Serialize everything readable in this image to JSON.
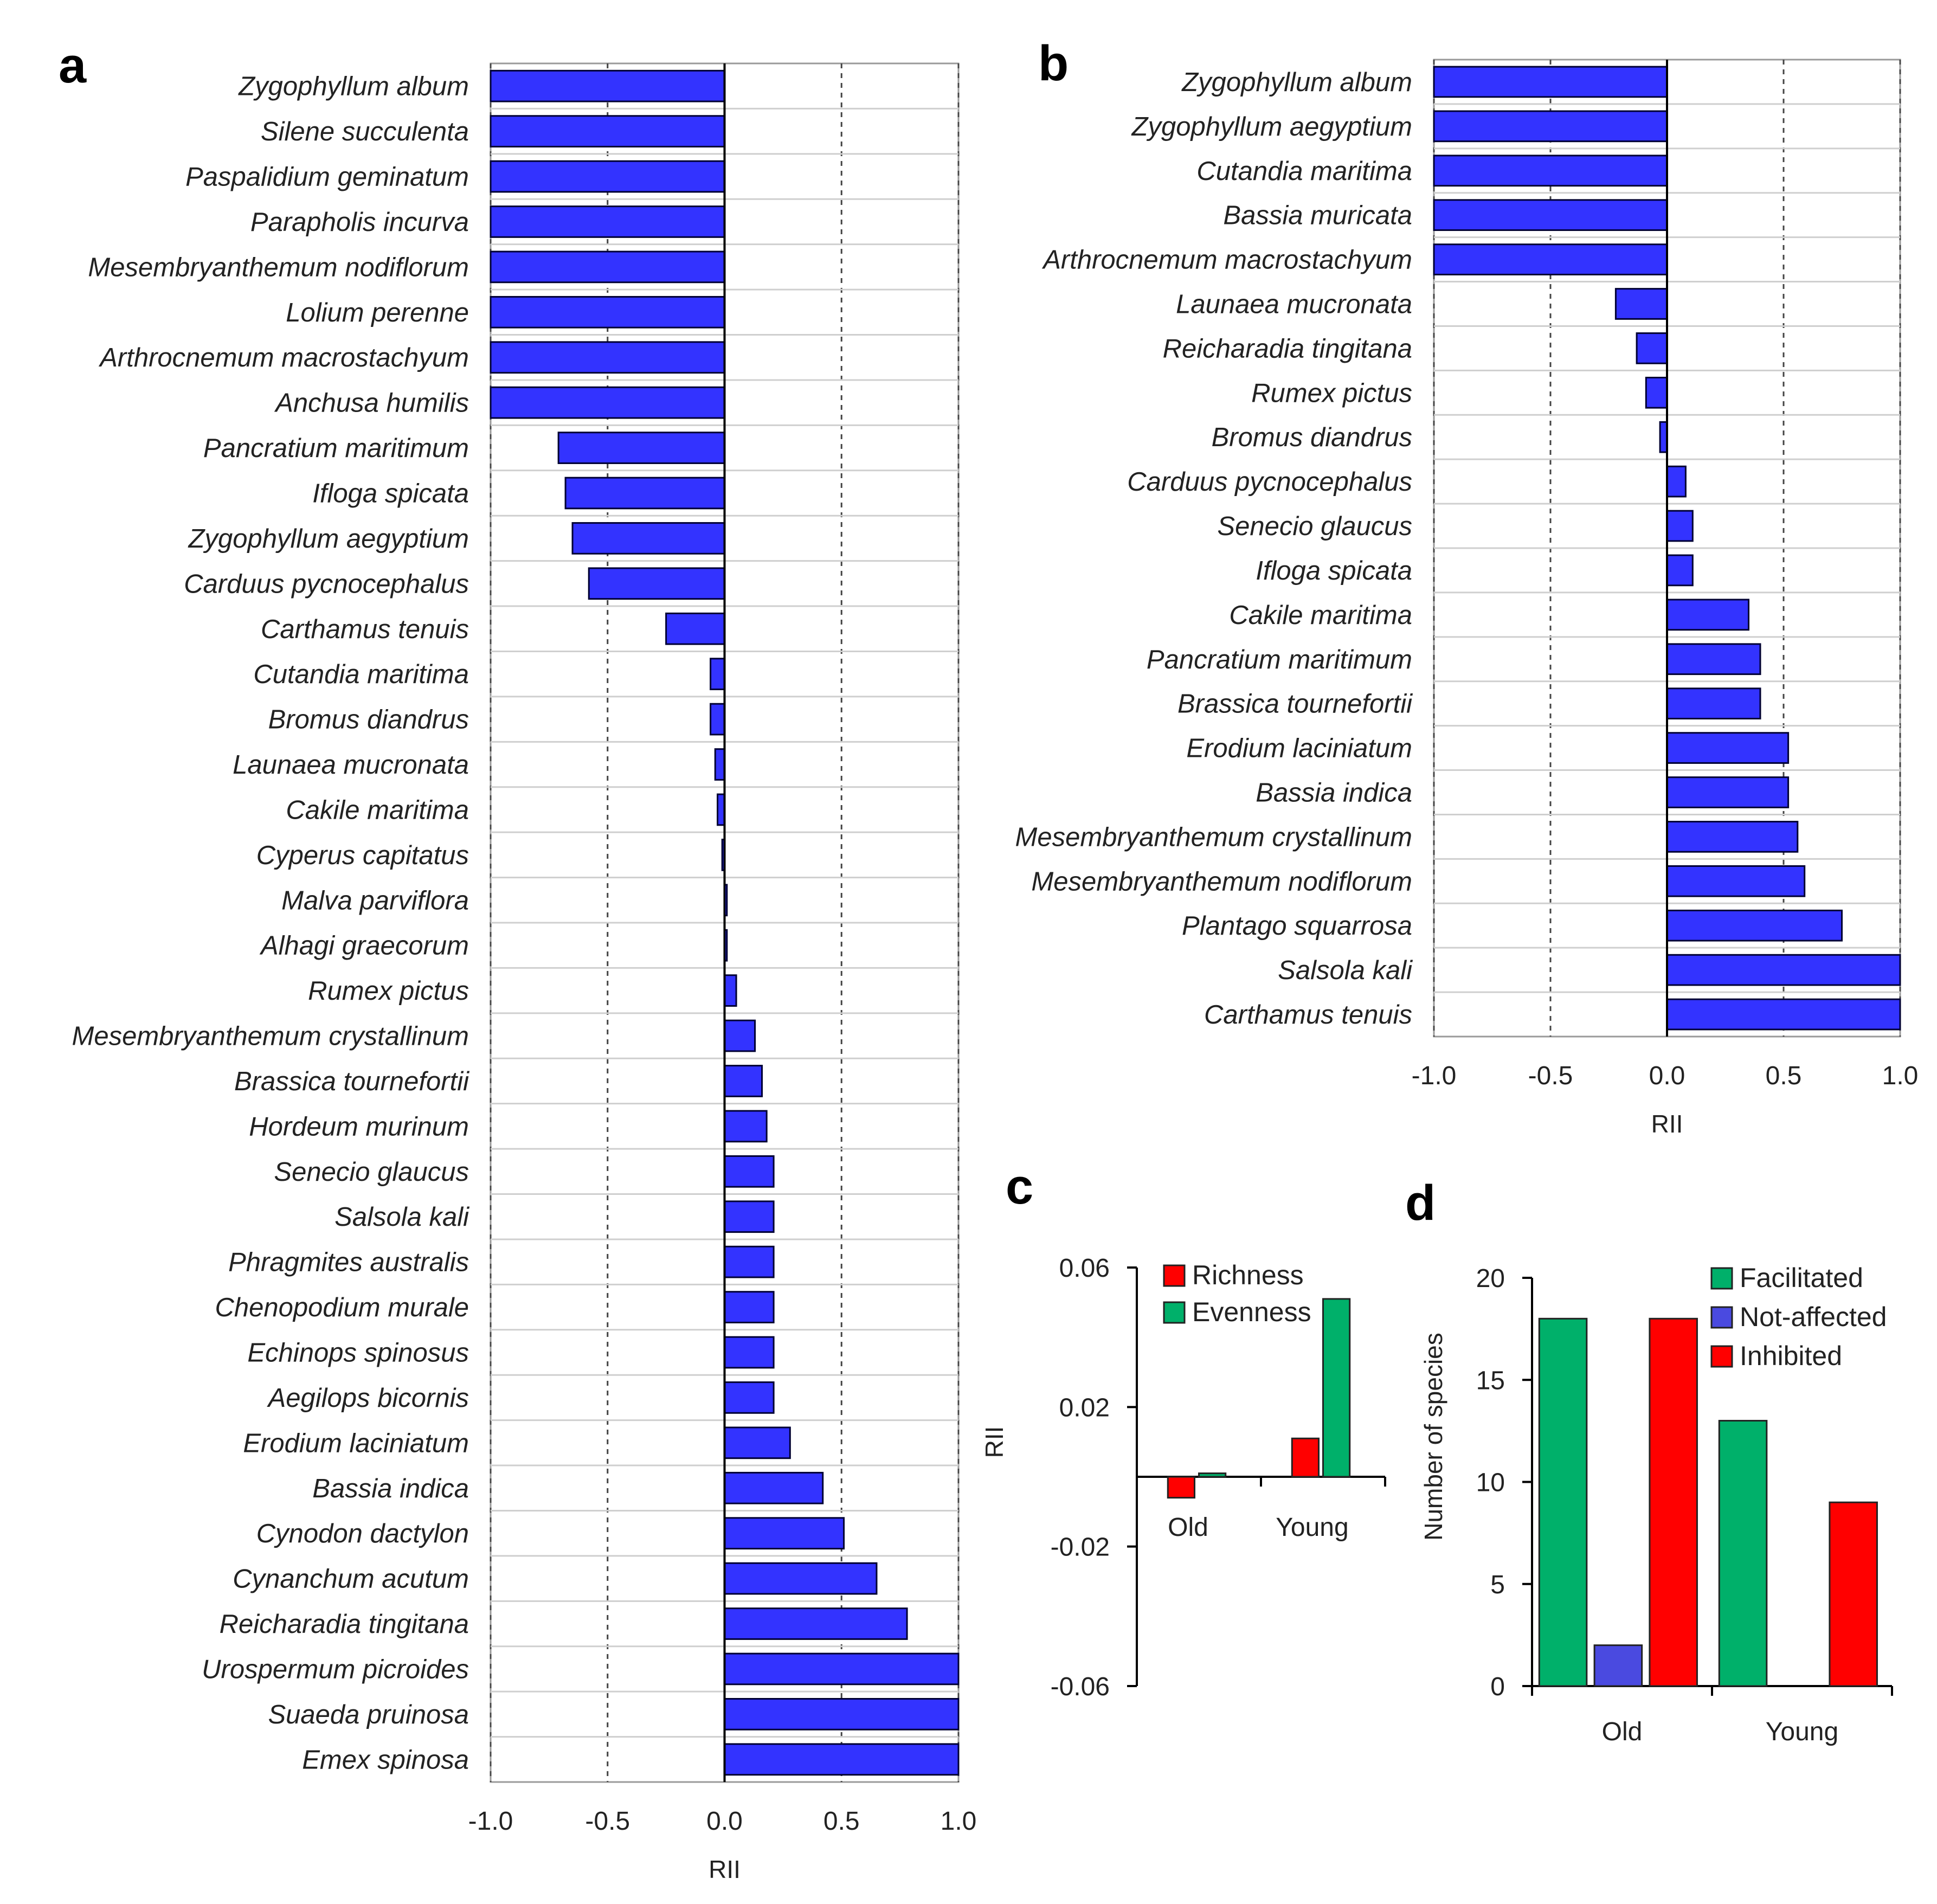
{
  "panels": {
    "a": {
      "letter": "a"
    },
    "b": {
      "letter": "b"
    },
    "c": {
      "letter": "c"
    },
    "d": {
      "letter": "d"
    }
  },
  "colors": {
    "bar": "#3333ff",
    "bar_edge": "#000033",
    "richness": "#ff0000",
    "evenness": "#00b06a",
    "facilitated": "#00b06a",
    "not_affected": "#4a4ae0",
    "inhibited": "#ff0000",
    "grid": "#444444"
  },
  "chart_data": [
    {
      "id": "a",
      "type": "bar",
      "orientation": "horizontal",
      "xlabel": "RII",
      "xlim": [
        -1.0,
        1.0
      ],
      "xticks": [
        "-1.0",
        "-0.5",
        "0.0",
        "0.5",
        "1.0"
      ],
      "categories": [
        "Zygophyllum album",
        "Silene succulenta",
        "Paspalidium geminatum",
        "Parapholis incurva",
        "Mesembryanthemum nodiflorum",
        "Lolium perenne",
        "Arthrocnemum macrostachyum",
        "Anchusa humilis",
        "Pancratium maritimum",
        "Ifloga spicata",
        "Zygophyllum aegyptium",
        "Carduus pycnocephalus",
        "Carthamus tenuis",
        "Cutandia maritima",
        "Bromus diandrus",
        "Launaea mucronata",
        "Cakile maritima",
        "Cyperus capitatus",
        "Malva parviflora",
        "Alhagi graecorum",
        "Rumex pictus",
        "Mesembryanthemum crystallinum",
        "Brassica tournefortii",
        "Hordeum murinum",
        "Senecio glaucus",
        "Salsola kali",
        "Phragmites australis",
        "Chenopodium murale",
        "Echinops spinosus",
        "Aegilops bicornis",
        "Erodium laciniatum",
        "Bassia indica",
        "Cynodon dactylon",
        "Cynanchum acutum",
        "Reicharadia tingitana",
        "Urospermum picroides",
        "Suaeda pruinosa",
        "Emex spinosa"
      ],
      "values": [
        -1.0,
        -1.0,
        -1.0,
        -1.0,
        -1.0,
        -1.0,
        -1.0,
        -1.0,
        -0.71,
        -0.68,
        -0.65,
        -0.58,
        -0.25,
        -0.06,
        -0.06,
        -0.04,
        -0.03,
        -0.01,
        0.01,
        0.01,
        0.05,
        0.13,
        0.16,
        0.18,
        0.21,
        0.21,
        0.21,
        0.21,
        0.21,
        0.21,
        0.28,
        0.42,
        0.51,
        0.65,
        0.78,
        1.0,
        1.0,
        1.0
      ]
    },
    {
      "id": "b",
      "type": "bar",
      "orientation": "horizontal",
      "xlabel": "RII",
      "xlim": [
        -1.0,
        1.0
      ],
      "xticks": [
        "-1.0",
        "-0.5",
        "0.0",
        "0.5",
        "1.0"
      ],
      "categories": [
        "Zygophyllum album",
        "Zygophyllum aegyptium",
        "Cutandia maritima",
        "Bassia muricata",
        "Arthrocnemum macrostachyum",
        "Launaea mucronata",
        "Reicharadia tingitana",
        "Rumex pictus",
        "Bromus diandrus",
        "Carduus pycnocephalus",
        "Senecio glaucus",
        "Ifloga spicata",
        "Cakile maritima",
        "Pancratium maritimum",
        "Brassica tournefortii",
        "Erodium laciniatum",
        "Bassia indica",
        "Mesembryanthemum crystallinum",
        "Mesembryanthemum nodiflorum",
        "Plantago squarrosa",
        "Salsola kali",
        "Carthamus tenuis"
      ],
      "values": [
        -1.0,
        -1.0,
        -1.0,
        -1.0,
        -1.0,
        -0.22,
        -0.13,
        -0.09,
        -0.03,
        0.08,
        0.11,
        0.11,
        0.35,
        0.4,
        0.4,
        0.52,
        0.52,
        0.56,
        0.59,
        0.75,
        1.0,
        1.0
      ]
    },
    {
      "id": "c",
      "type": "bar",
      "ylabel": "RII",
      "ylim": [
        -0.06,
        0.06
      ],
      "yticks": [
        "0.06",
        "0.02",
        "-0.02",
        "-0.06"
      ],
      "categories": [
        "Old",
        "Young"
      ],
      "series": [
        {
          "name": "Richness",
          "values": [
            -0.006,
            0.011
          ]
        },
        {
          "name": "Evenness",
          "values": [
            0.001,
            0.051
          ]
        }
      ]
    },
    {
      "id": "d",
      "type": "bar",
      "ylabel": "Number of species",
      "ylim": [
        0,
        20
      ],
      "yticks": [
        "20",
        "15",
        "10",
        "5",
        "0"
      ],
      "categories": [
        "Old",
        "Young"
      ],
      "series": [
        {
          "name": "Facilitated",
          "values": [
            18,
            13
          ]
        },
        {
          "name": "Not-affected",
          "values": [
            2,
            0
          ]
        },
        {
          "name": "Inhibited",
          "values": [
            18,
            9
          ]
        }
      ]
    }
  ]
}
